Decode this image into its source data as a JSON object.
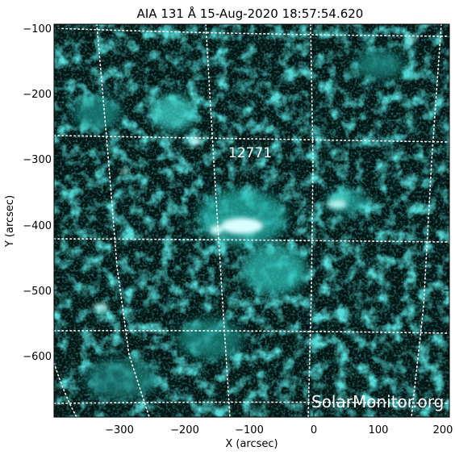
{
  "title": "AIA 131 Å 15-Aug-2020 18:57:54.620",
  "xlabel": "X (arcsec)",
  "ylabel": "Y (arcsec)",
  "x_ticks": [
    "−300",
    "−200",
    "−100",
    "0",
    "100",
    "200"
  ],
  "y_ticks": [
    "−100",
    "−200",
    "−300",
    "−400",
    "−500",
    "−600"
  ],
  "region_label": "12771",
  "watermark": "SolarMonitor.org",
  "colors": {
    "background": "#ffffff",
    "image_dark": "#021412",
    "emission": "#29c9c0",
    "bright": "#e9ffff",
    "grid": "#ffffff",
    "label_text": "#ffffff"
  }
}
